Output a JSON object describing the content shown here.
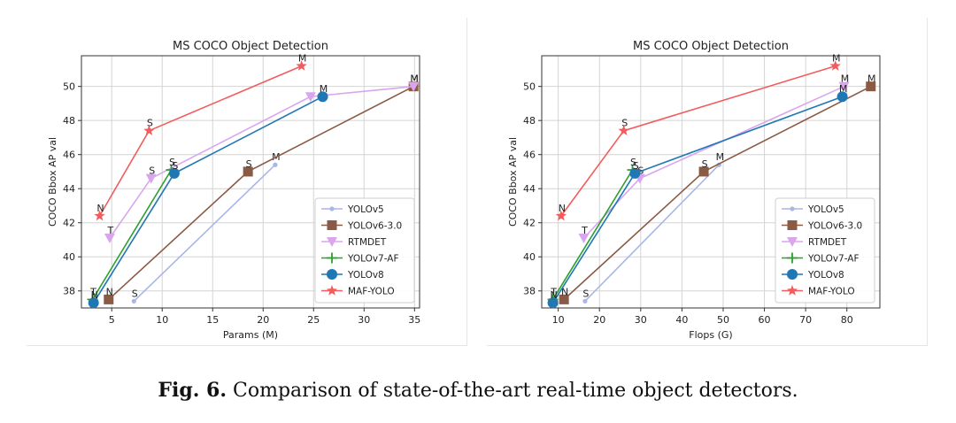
{
  "chart_data": [
    {
      "type": "line",
      "title": "MS COCO Object Detection",
      "xlabel": "Params (M)",
      "ylabel": "COCO Bbox AP val",
      "xlim": [
        2,
        35.5
      ],
      "ylim": [
        37,
        51.8
      ],
      "xticks": [
        5,
        10,
        15,
        20,
        25,
        30,
        35
      ],
      "yticks": [
        38,
        40,
        42,
        44,
        46,
        48,
        50
      ],
      "grid": true,
      "legend_position": "lower-right",
      "series": [
        {
          "name": "YOLOv5",
          "color": "#a8b6e8",
          "marker": "circle-small",
          "points": [
            {
              "x": 7.2,
              "y": 37.4,
              "label": "S"
            },
            {
              "x": 21.2,
              "y": 45.4,
              "label": "M"
            }
          ]
        },
        {
          "name": "YOLOv6-3.0",
          "color": "#8b5a44",
          "marker": "square",
          "points": [
            {
              "x": 4.7,
              "y": 37.5,
              "label": "N"
            },
            {
              "x": 18.5,
              "y": 45.0,
              "label": "S"
            },
            {
              "x": 34.9,
              "y": 50.0,
              "label": "M"
            }
          ]
        },
        {
          "name": "RTMDET",
          "color": "#d9a6ee",
          "marker": "triangle-down",
          "points": [
            {
              "x": 4.8,
              "y": 41.1,
              "label": "T"
            },
            {
              "x": 8.9,
              "y": 44.6,
              "label": "S"
            },
            {
              "x": 24.7,
              "y": 49.4,
              "label": ""
            },
            {
              "x": 34.9,
              "y": 50.0,
              "label": "M"
            }
          ]
        },
        {
          "name": "YOLOv7-AF",
          "color": "#2ca02c",
          "marker": "plus",
          "points": [
            {
              "x": 3.1,
              "y": 37.5,
              "label": "T"
            },
            {
              "x": 10.9,
              "y": 45.1,
              "label": "S"
            }
          ]
        },
        {
          "name": "YOLOv8",
          "color": "#1f77b4",
          "marker": "circle",
          "points": [
            {
              "x": 3.2,
              "y": 37.3,
              "label": "N"
            },
            {
              "x": 11.2,
              "y": 44.9,
              "label": "S"
            },
            {
              "x": 25.9,
              "y": 49.4,
              "label": "M"
            }
          ]
        },
        {
          "name": "MAF-YOLO",
          "color": "#f25c5c",
          "marker": "star",
          "points": [
            {
              "x": 3.8,
              "y": 42.4,
              "label": "N"
            },
            {
              "x": 8.7,
              "y": 47.4,
              "label": "S"
            },
            {
              "x": 23.8,
              "y": 51.2,
              "label": "M"
            }
          ]
        }
      ]
    },
    {
      "type": "line",
      "title": "MS COCO Object Detection",
      "xlabel": "Flops (G)",
      "ylabel": "COCO Bbox AP val",
      "xlim": [
        6,
        88
      ],
      "ylim": [
        37,
        51.8
      ],
      "xticks": [
        10,
        20,
        30,
        40,
        50,
        60,
        70,
        80
      ],
      "yticks": [
        38,
        40,
        42,
        44,
        46,
        48,
        50
      ],
      "grid": true,
      "legend_position": "lower-right",
      "series": [
        {
          "name": "YOLOv5",
          "color": "#a8b6e8",
          "marker": "circle-small",
          "points": [
            {
              "x": 16.5,
              "y": 37.4,
              "label": "S"
            },
            {
              "x": 49.0,
              "y": 45.4,
              "label": "M"
            }
          ]
        },
        {
          "name": "YOLOv6-3.0",
          "color": "#8b5a44",
          "marker": "square",
          "points": [
            {
              "x": 11.4,
              "y": 37.5,
              "label": "N"
            },
            {
              "x": 45.3,
              "y": 45.0,
              "label": "S"
            },
            {
              "x": 85.8,
              "y": 50.0,
              "label": "M"
            }
          ]
        },
        {
          "name": "RTMDET",
          "color": "#d9a6ee",
          "marker": "triangle-down",
          "points": [
            {
              "x": 16.2,
              "y": 41.1,
              "label": "T"
            },
            {
              "x": 29.8,
              "y": 44.6,
              "label": "S"
            },
            {
              "x": 79.3,
              "y": 50.0,
              "label": "M"
            }
          ]
        },
        {
          "name": "YOLOv7-AF",
          "color": "#2ca02c",
          "marker": "plus",
          "points": [
            {
              "x": 8.7,
              "y": 37.5,
              "label": "T"
            },
            {
              "x": 28.0,
              "y": 45.1,
              "label": "S"
            }
          ]
        },
        {
          "name": "YOLOv8",
          "color": "#1f77b4",
          "marker": "circle",
          "points": [
            {
              "x": 8.7,
              "y": 37.3,
              "label": "N"
            },
            {
              "x": 28.6,
              "y": 44.9,
              "label": "S"
            },
            {
              "x": 78.9,
              "y": 49.4,
              "label": "M"
            }
          ]
        },
        {
          "name": "MAF-YOLO",
          "color": "#f25c5c",
          "marker": "star",
          "points": [
            {
              "x": 10.7,
              "y": 42.4,
              "label": "N"
            },
            {
              "x": 25.9,
              "y": 47.4,
              "label": "S"
            },
            {
              "x": 77.2,
              "y": 51.2,
              "label": "M"
            }
          ]
        }
      ]
    }
  ],
  "caption": {
    "prefix": "Fig. 6.",
    "text": "Comparison of state-of-the-art real-time object detectors."
  }
}
